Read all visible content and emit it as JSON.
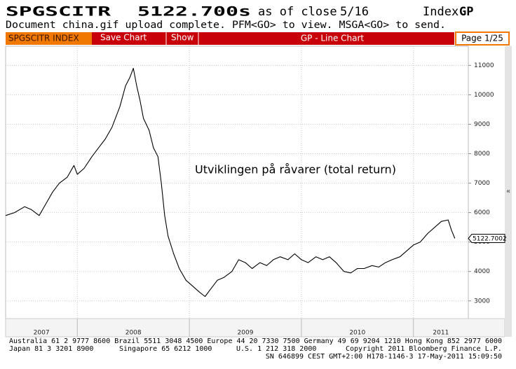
{
  "header": {
    "ticker": "SPGSCITR",
    "price": "5122.700s",
    "as_of": "as of close",
    "date": "5/16",
    "market": "Index",
    "function": "GP",
    "message": "Document china.gif upload complete. PFM<GO> to view. MSGA<GO> to send."
  },
  "toolbar": {
    "security": "SPGSCITR INDEX",
    "buttons": [
      "Save Chart",
      "Show"
    ],
    "title": "GP - Line Chart",
    "page": "Page 1/25"
  },
  "chart_data": {
    "type": "line",
    "annotation": "Utviklingen på råvarer (total return)",
    "x": [
      2007.36,
      2007.44,
      2007.53,
      2007.59,
      2007.66,
      2007.72,
      2007.78,
      2007.84,
      2007.91,
      2007.97,
      2008.0,
      2008.06,
      2008.13,
      2008.19,
      2008.25,
      2008.31,
      2008.38,
      2008.43,
      2008.47,
      2008.5,
      2008.53,
      2008.56,
      2008.59,
      2008.64,
      2008.68,
      2008.72,
      2008.75,
      2008.78,
      2008.81,
      2008.86,
      2008.91,
      2008.97,
      2009.03,
      2009.09,
      2009.14,
      2009.19,
      2009.25,
      2009.31,
      2009.38,
      2009.44,
      2009.5,
      2009.56,
      2009.63,
      2009.69,
      2009.75,
      2009.81,
      2009.88,
      2009.94,
      2010.0,
      2010.06,
      2010.13,
      2010.19,
      2010.25,
      2010.31,
      2010.38,
      2010.44,
      2010.5,
      2010.56,
      2010.63,
      2010.69,
      2010.75,
      2010.81,
      2010.88,
      2010.94,
      2011.0,
      2011.06,
      2011.13,
      2011.19,
      2011.25,
      2011.31,
      2011.34,
      2011.37
    ],
    "values": [
      5900,
      6000,
      6200,
      6100,
      5900,
      6300,
      6700,
      7000,
      7200,
      7600,
      7300,
      7500,
      7900,
      8200,
      8500,
      8900,
      9600,
      10300,
      10600,
      10900,
      10300,
      9800,
      9200,
      8800,
      8200,
      7900,
      7000,
      5900,
      5200,
      4600,
      4100,
      3700,
      3500,
      3300,
      3150,
      3400,
      3700,
      3800,
      4000,
      4400,
      4300,
      4100,
      4300,
      4200,
      4400,
      4500,
      4400,
      4600,
      4400,
      4300,
      4500,
      4400,
      4500,
      4300,
      4000,
      3950,
      4100,
      4100,
      4200,
      4150,
      4300,
      4400,
      4500,
      4700,
      4900,
      5000,
      5300,
      5500,
      5700,
      5750,
      5400,
      5122.7002
    ],
    "color": "#000000",
    "xlim": [
      2007.36,
      2011.49
    ],
    "xticks": [
      2007,
      2008,
      2009,
      2010,
      2011
    ],
    "ylim": [
      2400,
      11650
    ],
    "yticks": [
      3000,
      4000,
      5000,
      6000,
      7000,
      8000,
      9000,
      10000,
      11000
    ],
    "grid": true
  },
  "footer": {
    "contacts1": "Australia 61 2 9777 8600 Brazil 5511 3048 4500 Europe 44 20 7330 7500 Germany 49 69 9204 1210 Hong Kong 852 2977 6000",
    "contacts2": [
      "Japan 81 3 3201 8900",
      "Singapore 65 6212 1000",
      "U.S. 1 212 318 2000",
      "Copyright 2011 Bloomberg Finance L.P."
    ],
    "session": "SN 646899 CEST GMT+2:00 H178-1146-3 17-May-2011 15:09:50"
  }
}
